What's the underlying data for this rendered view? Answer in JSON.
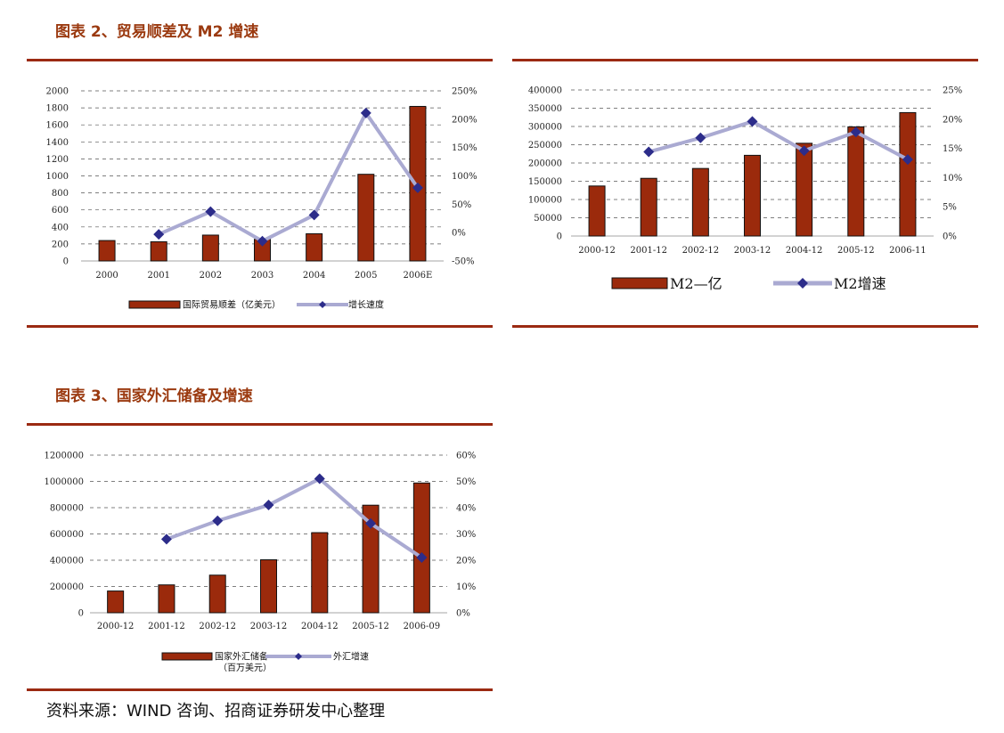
{
  "title_chart2": "图表 2、贸易顺差及 M2 增速",
  "title_chart3": "图表 3、国家外汇储备及增速",
  "source_text": "资料来源：WIND 咨询、招商证券研发中心整理",
  "colors": {
    "bar": "#9b2a0c",
    "line": "#aaaad2",
    "marker": "#2c2c8a",
    "rule": "#9b2a12",
    "title": "#9b3a10"
  },
  "chart_data": [
    {
      "type": "bar+line",
      "id": "trade",
      "categories": [
        "2000",
        "2001",
        "2002",
        "2003",
        "2004",
        "2005",
        "2006E"
      ],
      "bar_series": {
        "name": "国际贸易顺差（亿美元）",
        "values": [
          240,
          226,
          304,
          255,
          320,
          1019,
          1817
        ]
      },
      "line_series": {
        "name": "增长速度",
        "values": [
          null,
          -3,
          37,
          -15,
          31,
          211,
          79
        ]
      },
      "y_left": {
        "min": 0,
        "max": 2000,
        "step": 200,
        "ticks": [
          "0",
          "200",
          "400",
          "600",
          "800",
          "1000",
          "1200",
          "1400",
          "1600",
          "1800",
          "2000"
        ]
      },
      "y_right": {
        "min": -50,
        "max": 250,
        "step": 50,
        "ticks": [
          "-50%",
          "0%",
          "50%",
          "100%",
          "150%",
          "200%",
          "250%"
        ]
      }
    },
    {
      "type": "bar+line",
      "id": "m2",
      "categories": [
        "2000-12",
        "2001-12",
        "2002-12",
        "2003-12",
        "2004-12",
        "2005-12",
        "2006-11"
      ],
      "bar_series": {
        "name": "M2—亿",
        "values": [
          137000,
          158000,
          185000,
          221000,
          254000,
          299000,
          338000
        ]
      },
      "line_series": {
        "name": "M2增速",
        "values": [
          null,
          14.4,
          16.8,
          19.6,
          14.6,
          17.8,
          13.1
        ]
      },
      "y_left": {
        "min": 0,
        "max": 400000,
        "step": 50000,
        "ticks": [
          "0",
          "50000",
          "100000",
          "150000",
          "200000",
          "250000",
          "300000",
          "350000",
          "400000"
        ]
      },
      "y_right": {
        "min": 0,
        "max": 25,
        "step": 5,
        "ticks": [
          "0%",
          "5%",
          "10%",
          "15%",
          "20%",
          "25%"
        ]
      }
    },
    {
      "type": "bar+line",
      "id": "fx",
      "categories": [
        "2000-12",
        "2001-12",
        "2002-12",
        "2003-12",
        "2004-12",
        "2005-12",
        "2006-09"
      ],
      "bar_series": {
        "name": "国家外汇储备",
        "name_line2": "（百万美元）",
        "values": [
          165600,
          212200,
          286400,
          403300,
          609900,
          818900,
          987900
        ]
      },
      "line_series": {
        "name": "外汇增速",
        "values": [
          null,
          28,
          35,
          41,
          51,
          34,
          21
        ]
      },
      "y_left": {
        "min": 0,
        "max": 1200000,
        "step": 200000,
        "ticks": [
          "0",
          "200000",
          "400000",
          "600000",
          "800000",
          "1000000",
          "1200000"
        ]
      },
      "y_right": {
        "min": 0,
        "max": 60,
        "step": 10,
        "ticks": [
          "0%",
          "10%",
          "20%",
          "30%",
          "40%",
          "50%",
          "60%"
        ]
      }
    }
  ]
}
